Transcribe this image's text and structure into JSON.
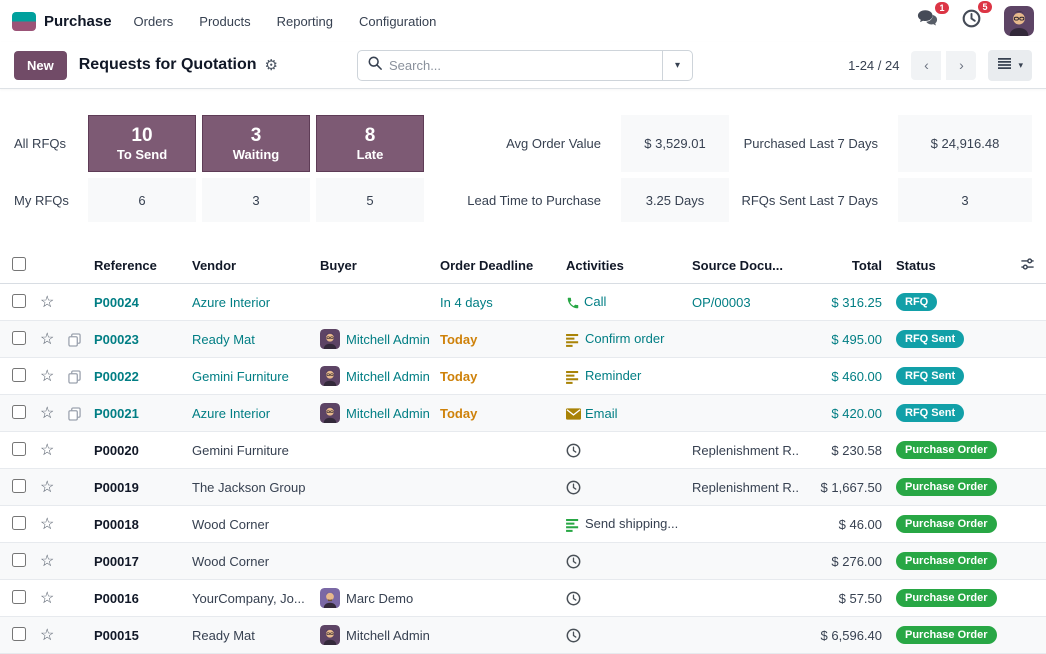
{
  "theme": {
    "purple": "#714B67",
    "card_purple": "#7d5a74",
    "teal": "#017E84",
    "badge_teal": "#12a0a8",
    "badge_green": "#28a745",
    "orange": "#ce8109",
    "red_badge": "#dc3545",
    "logo_top": "#00A09D",
    "logo_bottom": "#9B5377"
  },
  "navbar": {
    "app": "Purchase",
    "menus": [
      "Orders",
      "Products",
      "Reporting",
      "Configuration"
    ],
    "messages_badge": "1",
    "activities_badge": "5"
  },
  "control_panel": {
    "new_label": "New",
    "title": "Requests for Quotation",
    "search_placeholder": "Search...",
    "pager": "1-24 / 24"
  },
  "dashboard": {
    "rows": [
      {
        "label": "All RFQs",
        "cards": [
          {
            "value": "10",
            "label": "To Send"
          },
          {
            "value": "3",
            "label": "Waiting"
          },
          {
            "value": "8",
            "label": "Late"
          }
        ],
        "stats": [
          {
            "label": "Avg Order Value",
            "value": "$ 3,529.01"
          },
          {
            "label": "Purchased Last 7 Days",
            "value": "$ 24,916.48"
          }
        ]
      },
      {
        "label": "My RFQs",
        "cards": [
          {
            "value": "6"
          },
          {
            "value": "3"
          },
          {
            "value": "5"
          }
        ],
        "stats": [
          {
            "label": "Lead Time to Purchase",
            "value": "3.25 Days"
          },
          {
            "label": "RFQs Sent Last 7 Days",
            "value": "3"
          }
        ]
      }
    ]
  },
  "table": {
    "headers": [
      "Reference",
      "Vendor",
      "Buyer",
      "Order Deadline",
      "Activities",
      "Source Docu...",
      "Total",
      "Status"
    ],
    "rows": [
      {
        "reference": "P00024",
        "link": true,
        "copy": false,
        "vendor": "Azure Interior",
        "buyer": null,
        "deadline": "In 4 days",
        "deadline_color": "teal",
        "activity": {
          "icon": "phone",
          "label": "Call",
          "link": true
        },
        "source": "OP/00003",
        "total": "$ 316.25",
        "status": "RFQ",
        "status_color": "teal"
      },
      {
        "reference": "P00023",
        "link": true,
        "copy": true,
        "vendor": "Ready Mat",
        "buyer": {
          "name": "Mitchell Admin",
          "avatar": "mitchell"
        },
        "deadline": "Today",
        "deadline_color": "orange",
        "activity": {
          "icon": "list",
          "label": "Confirm order",
          "link": true
        },
        "source": "",
        "total": "$ 495.00",
        "status": "RFQ Sent",
        "status_color": "teal"
      },
      {
        "reference": "P00022",
        "link": true,
        "copy": true,
        "vendor": "Gemini Furniture",
        "buyer": {
          "name": "Mitchell Admin",
          "avatar": "mitchell"
        },
        "deadline": "Today",
        "deadline_color": "orange",
        "activity": {
          "icon": "list",
          "label": "Reminder",
          "link": true
        },
        "source": "",
        "total": "$ 460.00",
        "status": "RFQ Sent",
        "status_color": "teal"
      },
      {
        "reference": "P00021",
        "link": true,
        "copy": true,
        "vendor": "Azure Interior",
        "buyer": {
          "name": "Mitchell Admin",
          "avatar": "mitchell"
        },
        "deadline": "Today",
        "deadline_color": "orange",
        "activity": {
          "icon": "envelope",
          "label": "Email",
          "link": true
        },
        "source": "",
        "total": "$ 420.00",
        "status": "RFQ Sent",
        "status_color": "teal"
      },
      {
        "reference": "P00020",
        "link": false,
        "copy": false,
        "vendor": "Gemini Furniture",
        "buyer": null,
        "deadline": "",
        "deadline_color": "",
        "activity": {
          "icon": "clock",
          "label": "",
          "link": false
        },
        "source": "Replenishment R...",
        "total": "$ 230.58",
        "status": "Purchase Order",
        "status_color": "green"
      },
      {
        "reference": "P00019",
        "link": false,
        "copy": false,
        "vendor": "The Jackson Group",
        "buyer": null,
        "deadline": "",
        "deadline_color": "",
        "activity": {
          "icon": "clock",
          "label": "",
          "link": false
        },
        "source": "Replenishment R...",
        "total": "$ 1,667.50",
        "status": "Purchase Order",
        "status_color": "green"
      },
      {
        "reference": "P00018",
        "link": false,
        "copy": false,
        "vendor": "Wood Corner",
        "buyer": null,
        "deadline": "",
        "deadline_color": "",
        "activity": {
          "icon": "list-green",
          "label": "Send shipping...",
          "link": false
        },
        "source": "",
        "total": "$ 46.00",
        "status": "Purchase Order",
        "status_color": "green"
      },
      {
        "reference": "P00017",
        "link": false,
        "copy": false,
        "vendor": "Wood Corner",
        "buyer": null,
        "deadline": "",
        "deadline_color": "",
        "activity": {
          "icon": "clock",
          "label": "",
          "link": false
        },
        "source": "",
        "total": "$ 276.00",
        "status": "Purchase Order",
        "status_color": "green"
      },
      {
        "reference": "P00016",
        "link": false,
        "copy": false,
        "vendor": "YourCompany, Jo...",
        "buyer": {
          "name": "Marc Demo",
          "avatar": "marc"
        },
        "deadline": "",
        "deadline_color": "",
        "activity": {
          "icon": "clock",
          "label": "",
          "link": false
        },
        "source": "",
        "total": "$ 57.50",
        "status": "Purchase Order",
        "status_color": "green"
      },
      {
        "reference": "P00015",
        "link": false,
        "copy": false,
        "vendor": "Ready Mat",
        "buyer": {
          "name": "Mitchell Admin",
          "avatar": "mitchell"
        },
        "deadline": "",
        "deadline_color": "",
        "activity": {
          "icon": "clock",
          "label": "",
          "link": false
        },
        "source": "",
        "total": "$ 6,596.40",
        "status": "Purchase Order",
        "status_color": "green"
      }
    ]
  }
}
